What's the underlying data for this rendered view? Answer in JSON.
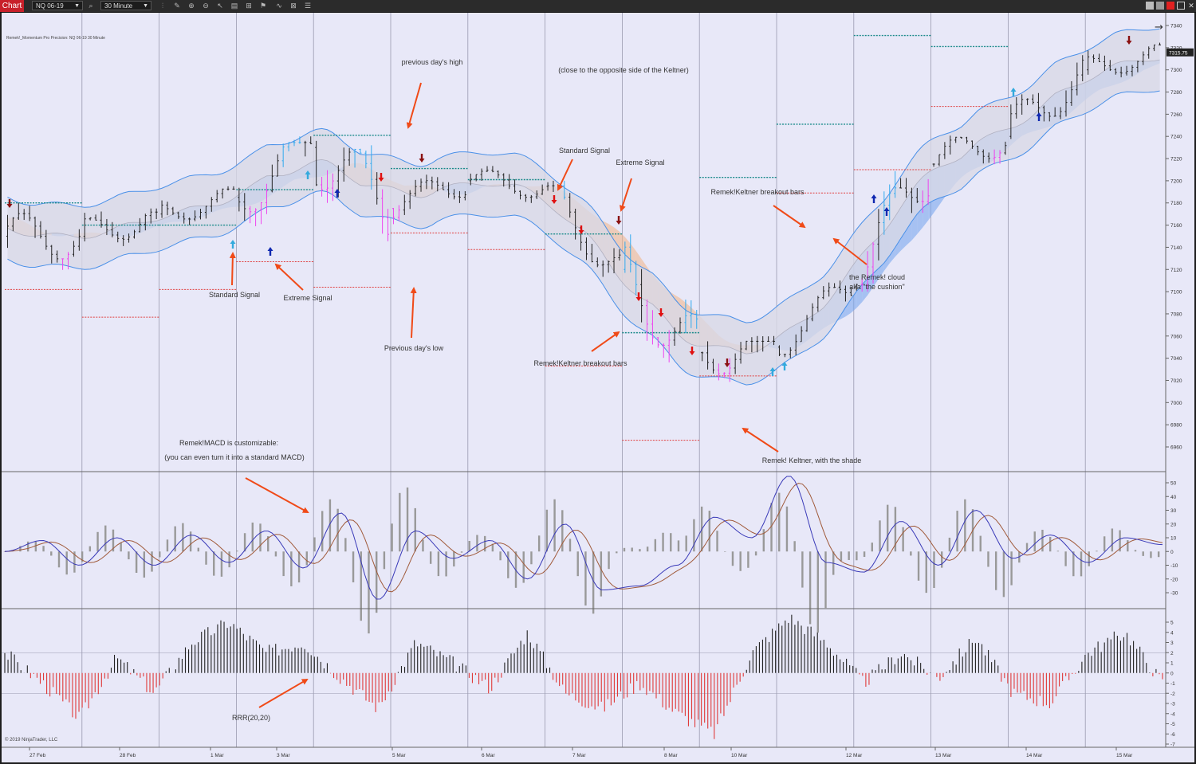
{
  "toolbar": {
    "tab": "Chart",
    "instrument": "NQ 06-19",
    "interval": "30 Minute",
    "icons": [
      "bar-type-icon",
      "draw-icon",
      "zoom-in-icon",
      "zoom-out-icon",
      "pointer-icon",
      "template-icon",
      "properties-icon",
      "indicators-icon",
      "strategies-icon",
      "list-icon"
    ]
  },
  "indicator_label": "Remek!_Momentum Pro Precision: NQ 06-19  30 Minute",
  "copyright": "© 2019 NinjaTrader, LLC",
  "chart_data": {
    "type": "candlestick",
    "instrument": "NQ 06-19",
    "interval": "30 Minute",
    "last_price": "7315.75",
    "price_axis": {
      "min": 6940,
      "max": 7345,
      "ticks": [
        6960,
        6980,
        7000,
        7020,
        7040,
        7060,
        7080,
        7100,
        7120,
        7140,
        7160,
        7180,
        7200,
        7220,
        7240,
        7260,
        7280,
        7300,
        7320,
        7340
      ]
    },
    "x_labels": [
      "27 Feb",
      "28 Feb",
      "1 Mar",
      "3 Mar",
      "5 Mar",
      "6 Mar",
      "7 Mar",
      "8 Mar",
      "10 Mar",
      "12 Mar",
      "13 Mar",
      "14 Mar",
      "15 Mar"
    ],
    "session_path": [
      {
        "day": "27 Feb",
        "o": 7150,
        "h": 7180,
        "l": 7085,
        "c": 7150
      },
      {
        "day": "28 Feb",
        "o": 7150,
        "h": 7175,
        "l": 7110,
        "c": 7170
      },
      {
        "day": "1 Mar",
        "o": 7170,
        "h": 7195,
        "l": 7145,
        "c": 7185
      },
      {
        "day": "3 Mar",
        "o": 7185,
        "h": 7240,
        "l": 7130,
        "c": 7230
      },
      {
        "day": "4 Mar",
        "o": 7230,
        "h": 7240,
        "l": 7100,
        "c": 7175
      },
      {
        "day": "5 Mar",
        "o": 7175,
        "h": 7210,
        "l": 7150,
        "c": 7200
      },
      {
        "day": "6 Mar",
        "o": 7200,
        "h": 7215,
        "l": 7165,
        "c": 7195
      },
      {
        "day": "7 Mar",
        "o": 7195,
        "h": 7200,
        "l": 7110,
        "c": 7120
      },
      {
        "day": "8 Mar",
        "o": 7120,
        "h": 7160,
        "l": 7020,
        "c": 7045
      },
      {
        "day": "10 Mar",
        "o": 7045,
        "h": 7060,
        "l": 6965,
        "c": 7050
      },
      {
        "day": "11 Mar",
        "o": 7050,
        "h": 7110,
        "l": 7040,
        "c": 7105
      },
      {
        "day": "12 Mar",
        "o": 7105,
        "h": 7230,
        "l": 7100,
        "c": 7215
      },
      {
        "day": "13 Mar",
        "o": 7215,
        "h": 7250,
        "l": 7180,
        "c": 7240
      },
      {
        "day": "14 Mar",
        "o": 7240,
        "h": 7330,
        "l": 7235,
        "c": 7300
      },
      {
        "day": "15 Mar",
        "o": 7300,
        "h": 7325,
        "l": 7275,
        "c": 7316
      }
    ],
    "prev_day_levels": [
      {
        "session": "27 Feb",
        "high": 7180,
        "low": 7102
      },
      {
        "session": "28 Feb",
        "high": 7160,
        "low": 7077
      },
      {
        "session": "1 Mar",
        "high": 7160,
        "low": 7102
      },
      {
        "session": "3 Mar",
        "high": 7192,
        "low": 7127
      },
      {
        "session": "5 Mar",
        "high": 7241,
        "low": 7104
      },
      {
        "session": "6 Mar",
        "high": 7211,
        "low": 7153
      },
      {
        "session": "7 Mar",
        "high": 7201,
        "low": 7138
      },
      {
        "session": "8 Mar",
        "high": 7152,
        "low": 7033
      },
      {
        "session": "10 Mar",
        "high": 7063,
        "low": 6966
      },
      {
        "session": "12 Mar",
        "high": 7203,
        "low": 7024
      },
      {
        "session": "13 Mar",
        "high": 7251,
        "low": 7189
      },
      {
        "session": "14 Mar",
        "high": 7331,
        "low": 7210
      },
      {
        "session": "15 Mar",
        "high": 7321,
        "low": 7267
      }
    ],
    "macd_axis": {
      "min": -38,
      "max": 55,
      "ticks": [
        50,
        40,
        30,
        20,
        10,
        0,
        -10,
        -20,
        -30
      ]
    },
    "macd_path": [
      0,
      8,
      -10,
      10,
      -10,
      12,
      -8,
      15,
      -12,
      28,
      -35,
      15,
      -5,
      8,
      -20,
      20,
      -28,
      -25,
      -10,
      25,
      10,
      55,
      -8,
      -15,
      22,
      -10,
      30,
      -5,
      12,
      -8,
      10,
      5
    ],
    "rrr_label": "RRR(20,20)",
    "rrr_axis": {
      "min": -7,
      "max": 5.5,
      "ticks": [
        5,
        4,
        3,
        2,
        1,
        0,
        -1,
        -2,
        -3,
        -4,
        -5,
        -6,
        -7
      ]
    },
    "rrr_path": [
      2,
      -1,
      -4.5,
      1.5,
      -2,
      3,
      5,
      2,
      3,
      -0.5,
      -3.5,
      3,
      1,
      -1.5,
      4,
      -2,
      -3.5,
      -1,
      -4,
      -6,
      2,
      5.5,
      3,
      -1,
      2,
      -0.5,
      3.5,
      -2,
      -3,
      2,
      4,
      -1
    ]
  },
  "annotations": {
    "prev_high": "previous day's high",
    "close_opposite": "(close to the opposite side of the Keltner)",
    "standard_signal_left": "Standard Signal",
    "extreme_signal_left": "Extreme Signal",
    "prev_low": "Previous day's low",
    "standard_signal_right": "Standard Signal",
    "extreme_signal_right": "Extreme Signal",
    "keltner_breakout_mid": "Remek!Keltner breakout bars",
    "keltner_breakout_right": "Remek!Keltner breakout bars",
    "cloud_line1": "the Remek! cloud",
    "cloud_line2": "aka \"the cushion\"",
    "keltner_shade": "Remek! Keltner, with the shade",
    "macd_line1": "Remek!MACD is customizable:",
    "macd_line2": "(you can even turn it into a standard MACD)",
    "rrr": "RRR(20,20)"
  },
  "colors": {
    "background": "#e8e8f8",
    "bars": "#222222",
    "keltner": "#4a90e8",
    "cloud_bull": "#7aa7ee",
    "cloud_bear": "#f0b890",
    "prev_high": "#1a8a8a",
    "prev_low": "#e04040",
    "annotation_arrow": "#f04a18",
    "macd_fast": "#3a3ab8",
    "macd_slow": "#a05a3a",
    "macd_hist": "#999999",
    "rrr_pos": "#222222",
    "rrr_neg": "#e03a3a",
    "breakout_up": "#33aaee",
    "breakout_down": "#ee44ee"
  }
}
